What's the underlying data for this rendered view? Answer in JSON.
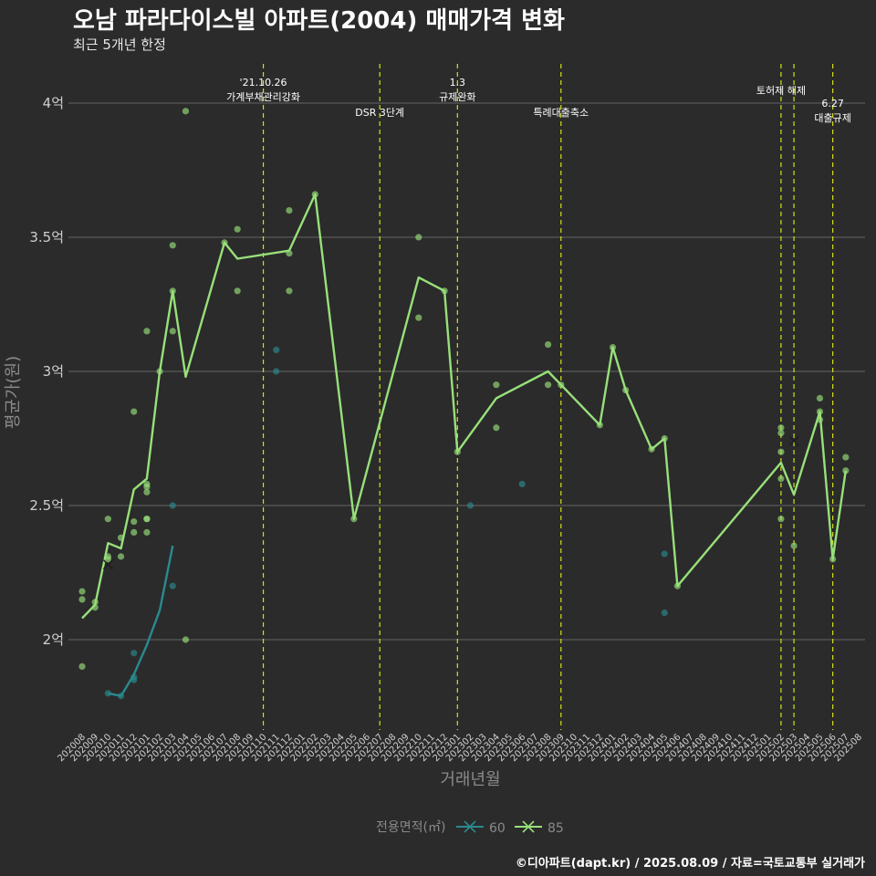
{
  "header": {
    "title": "오남 파라다이스빌 아파트(2004) 매매가격 변화",
    "subtitle": "최근 5개년 한정"
  },
  "caption": "©디아파트(dapt.kr) / 2025.08.09 / 자료=국토교통부 실거래가",
  "chart_data": {
    "type": "line",
    "title": "오남 파라다이스빌 아파트(2004) 매매가격 변화",
    "subtitle": "최근 5개년 한정",
    "xlabel": "거래년월",
    "ylabel": "평균가(원)",
    "ylim": [
      1.7,
      4.15
    ],
    "y_ticks": [
      {
        "value": 2.0,
        "label": "2억"
      },
      {
        "value": 2.5,
        "label": "2.5억"
      },
      {
        "value": 3.0,
        "label": "3억"
      },
      {
        "value": 3.5,
        "label": "3.5억"
      },
      {
        "value": 4.0,
        "label": "4억"
      }
    ],
    "x_categories": [
      "202008",
      "202009",
      "202010",
      "202011",
      "202012",
      "202101",
      "202102",
      "202103",
      "202104",
      "202105",
      "202106",
      "202107",
      "202108",
      "202109",
      "202110",
      "202111",
      "202112",
      "202201",
      "202202",
      "202203",
      "202204",
      "202205",
      "202206",
      "202207",
      "202208",
      "202209",
      "202210",
      "202211",
      "202212",
      "202301",
      "202302",
      "202303",
      "202304",
      "202305",
      "202306",
      "202307",
      "202308",
      "202309",
      "202310",
      "202311",
      "202312",
      "202401",
      "202402",
      "202403",
      "202404",
      "202405",
      "202406",
      "202407",
      "202408",
      "202409",
      "202410",
      "202411",
      "202412",
      "202501",
      "202502",
      "202503",
      "202504",
      "202505",
      "202506",
      "202507",
      "202508"
    ],
    "legend_title": "전용면적(㎡)",
    "legend_position": "bottom",
    "grid": true,
    "series": [
      {
        "name": "60",
        "color": "#2a8a8f",
        "line": [
          [
            "202010",
            1.8
          ],
          [
            "202011",
            1.79
          ],
          [
            "202012",
            1.87
          ],
          [
            "202101",
            1.98
          ],
          [
            "202102",
            2.11
          ],
          [
            "202103",
            2.35
          ]
        ],
        "points": [
          [
            "202010",
            1.8
          ],
          [
            "202011",
            1.79
          ],
          [
            "202012",
            1.85
          ],
          [
            "202012",
            1.86
          ],
          [
            "202012",
            1.95
          ],
          [
            "202103",
            2.2
          ],
          [
            "202103",
            2.5
          ],
          [
            "202111",
            3.08
          ],
          [
            "202111",
            3.0
          ],
          [
            "202302",
            2.5
          ],
          [
            "202306",
            2.58
          ],
          [
            "202405",
            2.32
          ],
          [
            "202405",
            2.1
          ]
        ],
        "x_marks": []
      },
      {
        "name": "85",
        "color": "#98e07a",
        "line": [
          [
            "202008",
            2.08
          ],
          [
            "202009",
            2.13
          ],
          [
            "202010",
            2.36
          ],
          [
            "202011",
            2.34
          ],
          [
            "202012",
            2.56
          ],
          [
            "202101",
            2.6
          ],
          [
            "202102",
            3.0
          ],
          [
            "202103",
            3.3
          ],
          [
            "202104",
            2.98
          ],
          [
            "202107",
            3.48
          ],
          [
            "202108",
            3.42
          ],
          [
            "202112",
            3.45
          ],
          [
            "202202",
            3.66
          ],
          [
            "202205",
            2.45
          ],
          [
            "202210",
            3.35
          ],
          [
            "202212",
            3.3
          ],
          [
            "202301",
            2.7
          ],
          [
            "202304",
            2.9
          ],
          [
            "202308",
            3.0
          ],
          [
            "202309",
            2.95
          ],
          [
            "202312",
            2.8
          ],
          [
            "202401",
            3.09
          ],
          [
            "202402",
            2.93
          ],
          [
            "202404",
            2.71
          ],
          [
            "202405",
            2.75
          ],
          [
            "202406",
            2.2
          ],
          [
            "202502",
            2.66
          ],
          [
            "202503",
            2.54
          ],
          [
            "202505",
            2.85
          ],
          [
            "202506",
            2.3
          ],
          [
            "202507",
            2.63
          ]
        ],
        "points": [
          [
            "202008",
            2.18
          ],
          [
            "202008",
            2.15
          ],
          [
            "202008",
            1.9
          ],
          [
            "202009",
            2.12
          ],
          [
            "202009",
            2.14
          ],
          [
            "202010",
            2.45
          ],
          [
            "202010",
            2.31
          ],
          [
            "202010",
            2.3
          ],
          [
            "202011",
            2.38
          ],
          [
            "202011",
            2.31
          ],
          [
            "202012",
            2.85
          ],
          [
            "202012",
            2.44
          ],
          [
            "202012",
            2.4
          ],
          [
            "202101",
            3.15
          ],
          [
            "202101",
            2.58
          ],
          [
            "202101",
            2.57
          ],
          [
            "202101",
            2.55
          ],
          [
            "202101",
            2.45
          ],
          [
            "202101",
            2.45
          ],
          [
            "202101",
            2.4
          ],
          [
            "202102",
            3.0
          ],
          [
            "202103",
            3.47
          ],
          [
            "202103",
            3.3
          ],
          [
            "202103",
            3.15
          ],
          [
            "202104",
            3.97
          ],
          [
            "202104",
            2.0
          ],
          [
            "202107",
            3.48
          ],
          [
            "202108",
            3.53
          ],
          [
            "202108",
            3.3
          ],
          [
            "202112",
            3.6
          ],
          [
            "202112",
            3.44
          ],
          [
            "202112",
            3.3
          ],
          [
            "202202",
            3.66
          ],
          [
            "202205",
            2.45
          ],
          [
            "202210",
            3.5
          ],
          [
            "202210",
            3.2
          ],
          [
            "202212",
            3.3
          ],
          [
            "202301",
            2.7
          ],
          [
            "202304",
            2.95
          ],
          [
            "202304",
            2.79
          ],
          [
            "202308",
            3.1
          ],
          [
            "202308",
            2.95
          ],
          [
            "202309",
            2.95
          ],
          [
            "202312",
            2.8
          ],
          [
            "202401",
            3.09
          ],
          [
            "202402",
            2.93
          ],
          [
            "202404",
            2.71
          ],
          [
            "202405",
            2.75
          ],
          [
            "202406",
            2.2
          ],
          [
            "202502",
            2.79
          ],
          [
            "202502",
            2.77
          ],
          [
            "202502",
            2.7
          ],
          [
            "202502",
            2.6
          ],
          [
            "202502",
            2.45
          ],
          [
            "202503",
            2.35
          ],
          [
            "202505",
            2.9
          ],
          [
            "202505",
            2.85
          ],
          [
            "202505",
            2.82
          ],
          [
            "202506",
            2.3
          ],
          [
            "202507",
            2.68
          ],
          [
            "202507",
            2.63
          ]
        ],
        "x_marks": [
          [
            "202010",
            2.28
          ],
          [
            "202503",
            2.74
          ]
        ]
      }
    ],
    "vlines": [
      {
        "x": "202110",
        "lines": [
          "'21.10.26",
          "가계부채관리강화"
        ],
        "row": "top"
      },
      {
        "x": "202207",
        "lines": [
          "DSR 3단계"
        ],
        "row": "low"
      },
      {
        "x": "202301",
        "lines": [
          "1.3",
          "규제완화"
        ],
        "row": "top"
      },
      {
        "x": "202309",
        "lines": [
          "특례대출축소"
        ],
        "row": "low"
      },
      {
        "x": "202502",
        "lines": [
          "토허제 해제"
        ],
        "row": "mid"
      },
      {
        "x": "202503",
        "lines": [],
        "row": "mid"
      },
      {
        "x": "202506",
        "lines": [
          "6.27",
          "대출규제"
        ],
        "row": "low2"
      }
    ]
  }
}
